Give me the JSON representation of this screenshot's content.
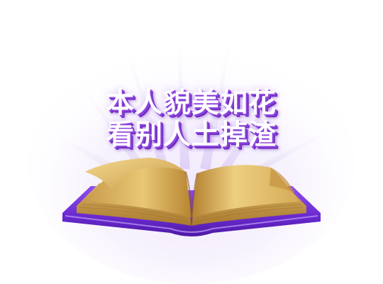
{
  "title": {
    "line1": "本人貌美如花",
    "line2": "看别人土掉渣"
  },
  "colors": {
    "title_text": "#ffffff",
    "title_shadow": "#7a33cc",
    "book_cover": "#6a2ad0",
    "book_page": "#e6c06a",
    "glow": "#e8ddf8"
  },
  "icons": {
    "book": "open-book-icon"
  }
}
